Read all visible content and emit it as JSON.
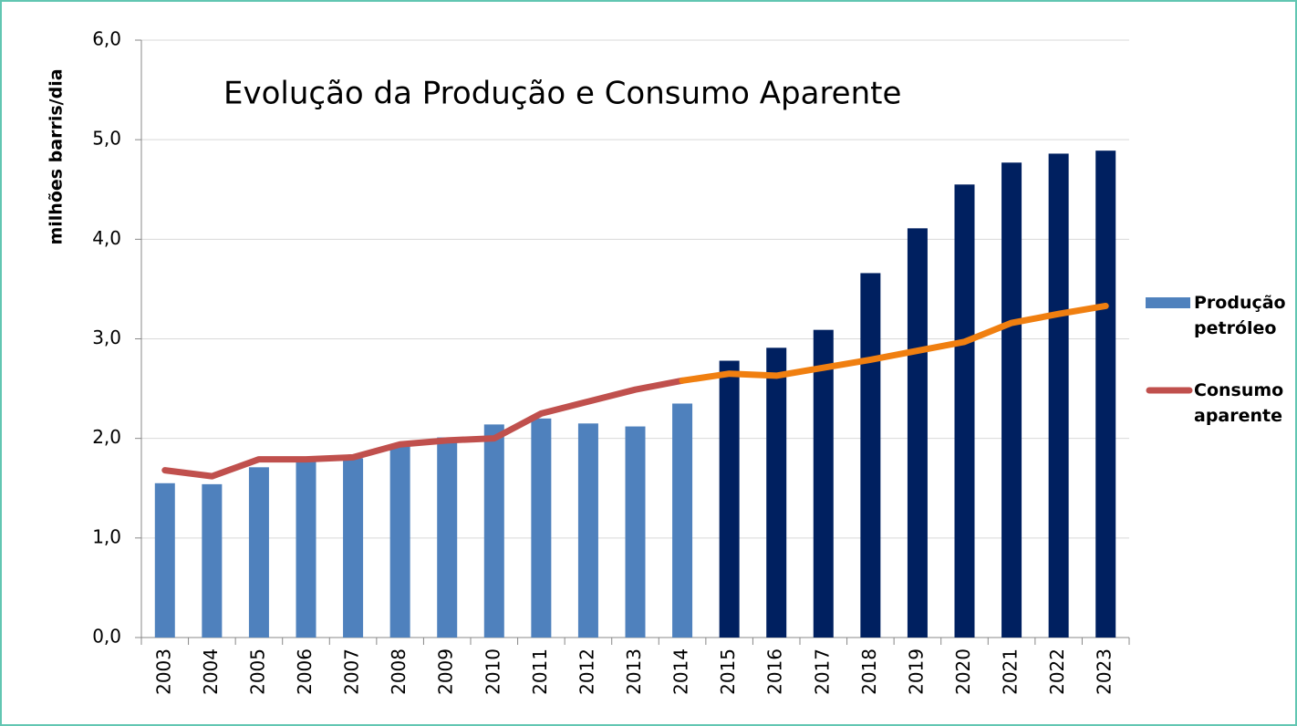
{
  "chart_data": {
    "type": "bar_line",
    "title": "Evolução da Produção e Consumo Aparente",
    "y_label": "milhões barris/dia",
    "categories": [
      "2003",
      "2004",
      "2005",
      "2006",
      "2007",
      "2008",
      "2009",
      "2010",
      "2011",
      "2012",
      "2013",
      "2014",
      "2015",
      "2016",
      "2017",
      "2018",
      "2019",
      "2020",
      "2021",
      "2022",
      "2023"
    ],
    "series": [
      {
        "name": "Produção petróleo",
        "type": "bar",
        "color": "#4f81bd",
        "colors": [
          "#4f81bd",
          "#4f81bd",
          "#4f81bd",
          "#4f81bd",
          "#4f81bd",
          "#4f81bd",
          "#4f81bd",
          "#4f81bd",
          "#4f81bd",
          "#4f81bd",
          "#4f81bd",
          "#4f81bd",
          "#002060",
          "#002060",
          "#002060",
          "#002060",
          "#002060",
          "#002060",
          "#002060",
          "#002060",
          "#002060"
        ],
        "values": [
          1.55,
          1.54,
          1.71,
          1.78,
          1.8,
          1.93,
          2.01,
          2.14,
          2.2,
          2.15,
          2.12,
          2.35,
          2.78,
          2.91,
          3.09,
          3.66,
          4.11,
          4.55,
          4.77,
          4.86,
          4.89
        ]
      },
      {
        "name": "Consumo aparente",
        "type": "line",
        "color": "#c0504d",
        "colors": [
          "#c0504d",
          "#c0504d",
          "#c0504d",
          "#c0504d",
          "#c0504d",
          "#c0504d",
          "#c0504d",
          "#c0504d",
          "#c0504d",
          "#c0504d",
          "#c0504d",
          "#c0504d",
          "#f07f10",
          "#f07f10",
          "#f07f10",
          "#f07f10",
          "#f07f10",
          "#f07f10",
          "#f07f10",
          "#f07f10",
          "#f07f10"
        ],
        "values": [
          1.68,
          1.62,
          1.79,
          1.79,
          1.81,
          1.94,
          1.98,
          2.0,
          2.25,
          2.37,
          2.49,
          2.58,
          2.65,
          2.63,
          2.71,
          2.79,
          2.88,
          2.97,
          3.16,
          3.25,
          3.33
        ]
      }
    ],
    "ylim": [
      0,
      6
    ],
    "yticks": [
      {
        "value": 0,
        "label": "0,0"
      },
      {
        "value": 1,
        "label": "1,0"
      },
      {
        "value": 2,
        "label": "2,0"
      },
      {
        "value": 3,
        "label": "3,0"
      },
      {
        "value": 4,
        "label": "4,0"
      },
      {
        "value": 5,
        "label": "5,0"
      },
      {
        "value": 6,
        "label": "6,0"
      }
    ],
    "grid": true,
    "legend": "right"
  }
}
